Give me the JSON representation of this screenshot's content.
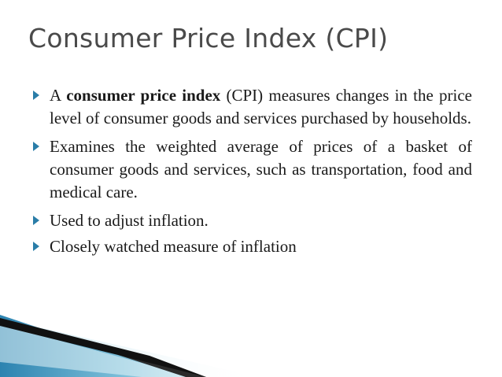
{
  "slide": {
    "title": "Consumer Price Index (CPI)",
    "bullets": [
      {
        "segments": [
          {
            "text": "A ",
            "bold": false
          },
          {
            "text": "consumer price index",
            "bold": true
          },
          {
            "text": " (CPI) measures changes in the price level of consumer goods and services purchased by households.",
            "bold": false
          }
        ]
      },
      {
        "segments": [
          {
            "text": "Examines the weighted average of prices of a basket of consumer goods and services, such as transportation, food and medical care.",
            "bold": false
          }
        ]
      },
      {
        "segments": [
          {
            "text": "Used to adjust inflation.",
            "bold": false
          }
        ]
      },
      {
        "segments": [
          {
            "text": "Closely watched measure of inflation",
            "bold": false
          }
        ]
      }
    ]
  },
  "theme": {
    "title_color": "#4a4a4a",
    "bullet_marker_color": "#2a7da8",
    "accent_teal": "#3f8fb8",
    "accent_dark": "#111111"
  }
}
